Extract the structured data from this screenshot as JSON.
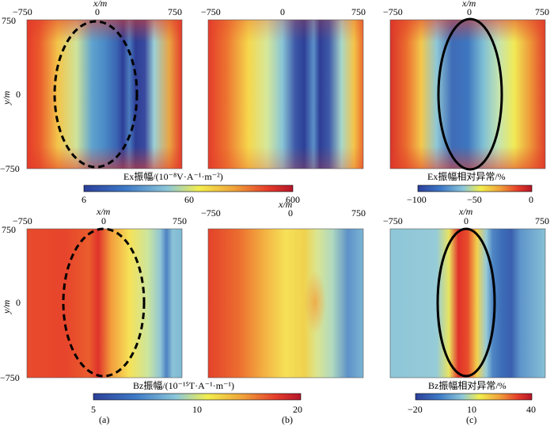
{
  "figure": {
    "panel_labels": [
      "(a)",
      "(b)",
      "(c)"
    ],
    "x_axis": {
      "label": "x/m",
      "ticks": [
        "−750",
        "0",
        "750"
      ]
    },
    "y_axis": {
      "label": "y/m",
      "ticks": [
        "750",
        "0",
        "−750"
      ]
    },
    "colorbars": {
      "ex_amplitude": {
        "title": "Ex振幅/(10⁻⁸V·A⁻¹·m⁻²)",
        "ticks": [
          "6",
          "60",
          "600"
        ]
      },
      "ex_anomaly": {
        "title": "Ex振幅相对异常/%",
        "ticks": [
          "−100",
          "−50",
          "0"
        ]
      },
      "bz_amplitude": {
        "title": "Bz振幅/(10⁻¹⁵T·A⁻¹·m⁻¹)",
        "ticks": [
          "5",
          "10",
          "20"
        ]
      },
      "bz_anomaly": {
        "title": "Bz振幅相对异常/%",
        "ticks": [
          "−20",
          "10",
          "40"
        ]
      }
    }
  },
  "colors": {
    "ramp": [
      "#2b3f9a",
      "#3d79c6",
      "#8cc7d9",
      "#f2ee4e",
      "#f0a23a",
      "#e43d2b",
      "#b5162a"
    ]
  },
  "chart_data": [
    {
      "type": "heatmap",
      "panel": "Ex amplitude, model with anomaly",
      "xlim": [
        -750,
        750
      ],
      "ylim": [
        -750,
        750
      ],
      "color_range": [
        6,
        600
      ],
      "scale": "log"
    },
    {
      "type": "heatmap",
      "panel": "Ex amplitude, background model",
      "xlim": [
        -750,
        750
      ],
      "ylim": [
        -750,
        750
      ],
      "color_range": [
        6,
        600
      ],
      "scale": "log"
    },
    {
      "type": "heatmap",
      "panel": "Ex amplitude relative anomaly",
      "xlim": [
        -750,
        750
      ],
      "ylim": [
        -750,
        750
      ],
      "color_range": [
        -100,
        0
      ]
    },
    {
      "type": "heatmap",
      "panel": "Bz amplitude, model with anomaly",
      "xlim": [
        -750,
        750
      ],
      "ylim": [
        -750,
        750
      ],
      "color_range": [
        5,
        20
      ],
      "scale": "log"
    },
    {
      "type": "heatmap",
      "panel": "Bz amplitude, background model",
      "xlim": [
        -750,
        750
      ],
      "ylim": [
        -750,
        750
      ],
      "color_range": [
        5,
        20
      ],
      "scale": "log"
    },
    {
      "type": "heatmap",
      "panel": "Bz amplitude relative anomaly",
      "xlim": [
        -750,
        750
      ],
      "ylim": [
        -750,
        750
      ],
      "color_range": [
        -20,
        40
      ]
    }
  ]
}
